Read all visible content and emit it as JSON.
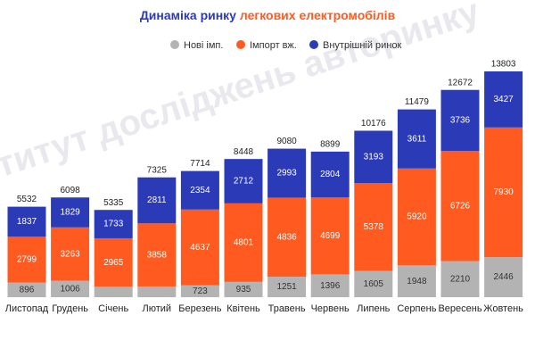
{
  "chart_data": {
    "type": "stacked-bar",
    "title": "Динаміка ринку",
    "title_highlight": "легкових електромобілів",
    "watermark": "Інститут досліджень авторинку",
    "categories": [
      "Листопад",
      "Грудень",
      "Січень",
      "Лютий",
      "Березень",
      "Квітень",
      "Травень",
      "Червень",
      "Липень",
      "Серпень",
      "Вересень",
      "Жовтень"
    ],
    "series": [
      {
        "name": "Нові імп.",
        "color": "#b3b3b3",
        "label_color": "#333333",
        "values": [
          896,
          1006,
          637,
          656,
          723,
          935,
          1251,
          1396,
          1605,
          1948,
          2210,
          2446
        ],
        "value_labels": [
          "896",
          "1006",
          null,
          null,
          "723",
          "935",
          "1251",
          "1396",
          "1605",
          "1948",
          "2210",
          "2446"
        ]
      },
      {
        "name": "Імпорт вж.",
        "color": "#ff5a1f",
        "label_color": "#ffffff",
        "values": [
          2799,
          3263,
          2965,
          3858,
          4637,
          4801,
          4836,
          4699,
          5378,
          5920,
          6726,
          7930
        ]
      },
      {
        "name": "Внутрішній ринок",
        "color": "#2b3bb8",
        "label_color": "#ffffff",
        "values": [
          1837,
          1829,
          1733,
          2811,
          2354,
          2712,
          2993,
          2804,
          3193,
          3611,
          3736,
          3427
        ]
      }
    ],
    "totals": [
      5532,
      6098,
      5335,
      7325,
      7714,
      8448,
      9080,
      8899,
      10176,
      11479,
      12672,
      13803
    ]
  }
}
